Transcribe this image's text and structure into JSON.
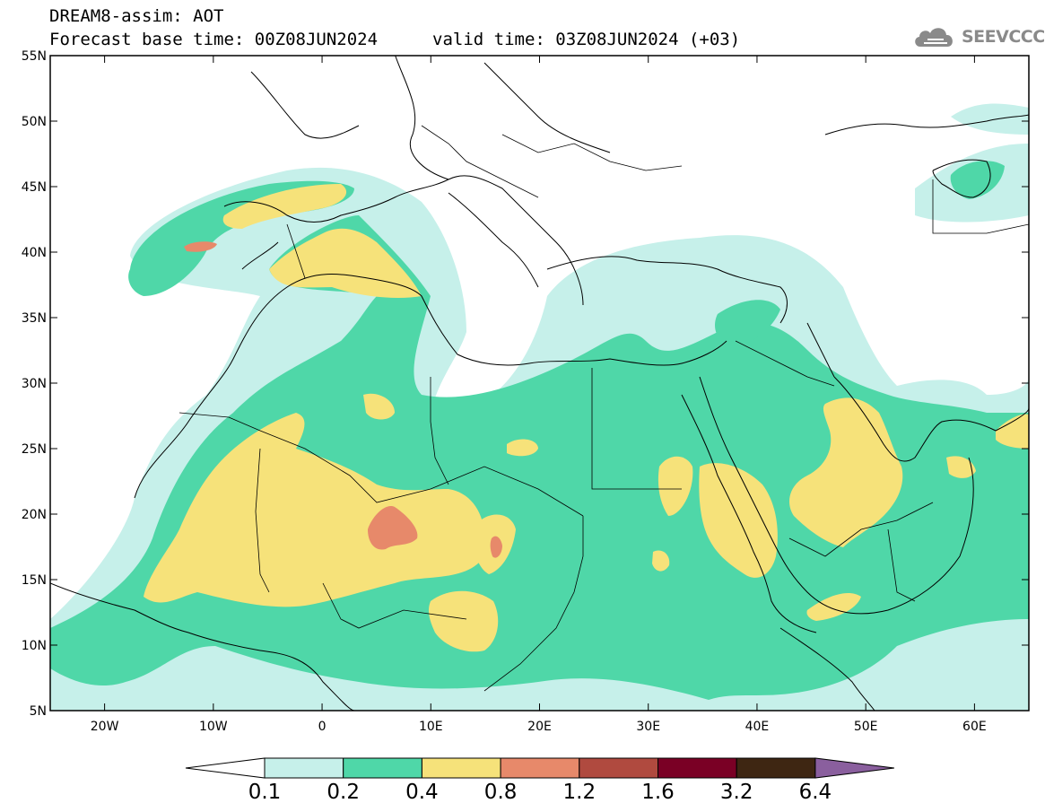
{
  "title": {
    "line1": "DREAM8-assim: AOT",
    "line2": "Forecast base time: 00Z08JUN2024",
    "valid": "valid time: 03Z08JUN2024 (+03)"
  },
  "logo": {
    "text": "SEEVCCC",
    "icon": "cloud-logo-icon"
  },
  "map": {
    "lat_labels": [
      "55N",
      "50N",
      "45N",
      "40N",
      "35N",
      "30N",
      "25N",
      "20N",
      "15N",
      "10N",
      "5N"
    ],
    "lon_labels": [
      "20W",
      "10W",
      "0",
      "10E",
      "20E",
      "30E",
      "40E",
      "50E",
      "60E"
    ],
    "lon_range": [
      -25,
      65
    ],
    "lat_range": [
      5,
      55
    ],
    "projection": "cylindrical",
    "variable": "AOT"
  },
  "colorbar": {
    "labels": [
      "0.1",
      "0.2",
      "0.4",
      "0.8",
      "1.2",
      "1.6",
      "3.2",
      "6.4"
    ],
    "colors": [
      "#ffffff",
      "#c6f0ea",
      "#4fd7a8",
      "#f6e27a",
      "#e7896a",
      "#b04a3f",
      "#7a0025",
      "#3e2612",
      "#8a5f9e"
    ]
  }
}
